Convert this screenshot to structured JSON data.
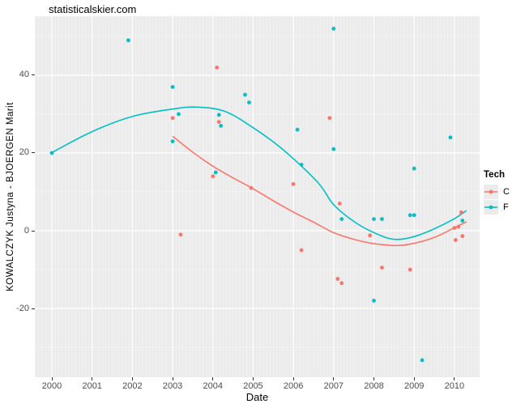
{
  "page_title": "statisticalskier.com",
  "chart_data": {
    "type": "scatter",
    "title": "statisticalskier.com",
    "xlabel": "Date",
    "ylabel": "KOWALCZYK Justyna - BJOERGEN Marit",
    "xlim": [
      1999.577,
      2010.626
    ],
    "ylim": [
      -37.7,
      55.2
    ],
    "x_ticks": [
      2000,
      2001,
      2002,
      2003,
      2004,
      2005,
      2006,
      2007,
      2008,
      2009,
      2010
    ],
    "y_ticks": [
      -20,
      0,
      20,
      40
    ],
    "y_minor_ticks": [
      -30,
      -10,
      10,
      30,
      50
    ],
    "x_minor_step_years": 0.08333,
    "grid": "on",
    "panel_background": "#EBEBEB",
    "grid_color": "#FFFFFF",
    "tick_label_color": "#4d4d4d",
    "point_radius": 2.4,
    "legend": {
      "title": "Tech",
      "position": "right"
    },
    "series": [
      {
        "name": "C",
        "color": "#F8766D",
        "points": [
          [
            2003.0,
            29
          ],
          [
            2003.2,
            -1
          ],
          [
            2004.0,
            14
          ],
          [
            2004.1,
            42
          ],
          [
            2004.15,
            28
          ],
          [
            2004.95,
            11
          ],
          [
            2006.0,
            12
          ],
          [
            2006.2,
            -5
          ],
          [
            2006.9,
            29
          ],
          [
            2007.15,
            7
          ],
          [
            2007.1,
            -12.4
          ],
          [
            2007.2,
            -13.5
          ],
          [
            2007.9,
            -1.2
          ],
          [
            2008.2,
            -9.5
          ],
          [
            2008.9,
            -10
          ],
          [
            2010.0,
            0.7
          ],
          [
            2010.03,
            -2.4
          ],
          [
            2010.1,
            1.0
          ],
          [
            2010.17,
            4.7
          ],
          [
            2010.2,
            -1.4
          ]
        ],
        "smooth": [
          [
            2003,
            24.3
          ],
          [
            2003.5,
            20.2
          ],
          [
            2004,
            16.6
          ],
          [
            2004.5,
            13.6
          ],
          [
            2005,
            10.8
          ],
          [
            2005.5,
            7.7
          ],
          [
            2006,
            4.8
          ],
          [
            2006.5,
            2.2
          ],
          [
            2007,
            -0.5
          ],
          [
            2007.5,
            -2.2
          ],
          [
            2008,
            -3.3
          ],
          [
            2008.6,
            -3.8
          ],
          [
            2009.1,
            -3.0
          ],
          [
            2009.6,
            -1.3
          ],
          [
            2010,
            0.8
          ],
          [
            2010.3,
            2.3
          ]
        ]
      },
      {
        "name": "F",
        "color": "#00BFC4",
        "points": [
          [
            2000.0,
            20
          ],
          [
            2001.9,
            49
          ],
          [
            2003.0,
            37
          ],
          [
            2003.0,
            23
          ],
          [
            2003.15,
            30
          ],
          [
            2004.07,
            15
          ],
          [
            2004.15,
            29.8
          ],
          [
            2004.2,
            27
          ],
          [
            2004.8,
            35
          ],
          [
            2004.9,
            33
          ],
          [
            2006.1,
            26
          ],
          [
            2006.2,
            17
          ],
          [
            2007.0,
            52
          ],
          [
            2007.0,
            21
          ],
          [
            2007.2,
            3
          ],
          [
            2008.0,
            3
          ],
          [
            2008.2,
            3
          ],
          [
            2008.0,
            -18
          ],
          [
            2008.9,
            4
          ],
          [
            2009.0,
            4
          ],
          [
            2009.0,
            16
          ],
          [
            2009.2,
            -33.3
          ],
          [
            2009.9,
            24
          ],
          [
            2010.2,
            2.6
          ]
        ],
        "smooth": [
          [
            2000,
            20.1
          ],
          [
            2001,
            25.5
          ],
          [
            2002,
            29.4
          ],
          [
            2003,
            31.3
          ],
          [
            2003.6,
            31.8
          ],
          [
            2004.3,
            30.7
          ],
          [
            2005,
            26.5
          ],
          [
            2005.75,
            20.8
          ],
          [
            2006.6,
            12.5
          ],
          [
            2007,
            6.7
          ],
          [
            2007.5,
            2.4
          ],
          [
            2008,
            -0.5
          ],
          [
            2008.5,
            -2.2
          ],
          [
            2009,
            -1.5
          ],
          [
            2009.5,
            0.5
          ],
          [
            2010,
            3.1
          ],
          [
            2010.3,
            5.2
          ]
        ]
      }
    ]
  }
}
